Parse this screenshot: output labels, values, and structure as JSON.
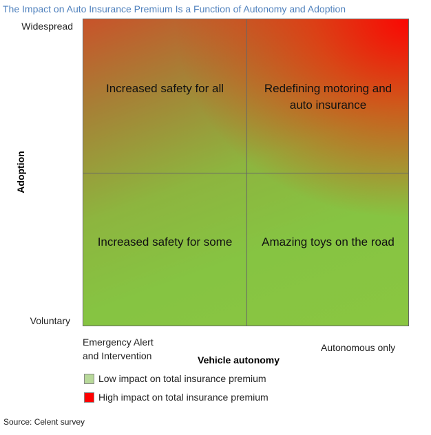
{
  "title": "The Impact on Auto Insurance Premium Is a Function of Autonomy and Adoption",
  "y_axis": {
    "label": "Adoption",
    "top_label": "Widespread",
    "bottom_label": "Voluntary"
  },
  "x_axis": {
    "label": "Vehicle autonomy",
    "left_label_line1": "Emergency Alert",
    "left_label_line2": "and  Intervention",
    "right_label": "Autonomous only"
  },
  "quadrants": {
    "top_left": "Increased safety for all",
    "top_right": "Redefining motoring and auto insurance",
    "bottom_left": "Increased safety for some",
    "bottom_right": "Amazing toys on the road"
  },
  "legend": [
    {
      "label": "Low impact on total insurance premium",
      "color": "#b8d99a"
    },
    {
      "label": "High impact on total insurance premium",
      "color": "#ff0000"
    }
  ],
  "source": "Source: Celent survey",
  "colors": {
    "title": "#4f81bd",
    "low_impact": "#86c442",
    "high_impact": "#ff0000"
  }
}
